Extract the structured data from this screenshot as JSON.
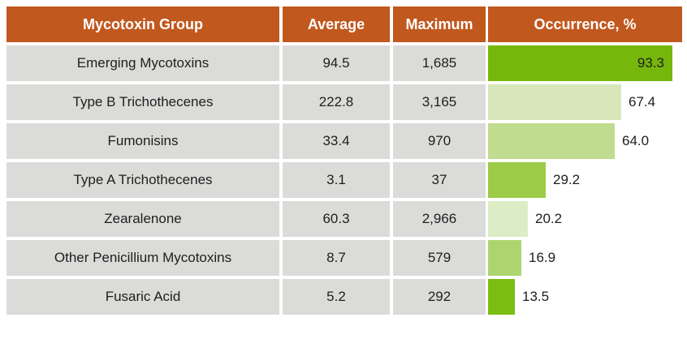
{
  "colors": {
    "header_background": "#C1581E",
    "header_text": "#FFFFFF",
    "row_background": "#DBDBD9",
    "row_text": "#1E1E1E",
    "occurrence_cell_background": "#FFFFFF"
  },
  "chart_data": {
    "type": "table",
    "note": "data table with embedded horizontal bar chart in the Occurrence column",
    "columns": [
      "Mycotoxin Group",
      "Average",
      "Maximum",
      "Occurrence, %"
    ],
    "occurrence_axis": {
      "min": 0,
      "max": 100
    },
    "rows": [
      {
        "group": "Emerging Mycotoxins",
        "average": "94.5",
        "maximum": "1,685",
        "occurrence": 93.3,
        "occurrence_label": "93.3",
        "bar_color": "#76B70B"
      },
      {
        "group": "Type B Trichothecenes",
        "average": "222.8",
        "maximum": "3,165",
        "occurrence": 67.4,
        "occurrence_label": "67.4",
        "bar_color": "#D7E7BA"
      },
      {
        "group": "Fumonisins",
        "average": "33.4",
        "maximum": "970",
        "occurrence": 64.0,
        "occurrence_label": "64.0",
        "bar_color": "#BFDC8F"
      },
      {
        "group": "Type A Trichothecenes",
        "average": "3.1",
        "maximum": "37",
        "occurrence": 29.2,
        "occurrence_label": "29.2",
        "bar_color": "#9BCB47"
      },
      {
        "group": "Zearalenone",
        "average": "60.3",
        "maximum": "2,966",
        "occurrence": 20.2,
        "occurrence_label": "20.2",
        "bar_color": "#DCEDC6"
      },
      {
        "group": "Other Penicillium Mycotoxins",
        "average": "8.7",
        "maximum": "579",
        "occurrence": 16.9,
        "occurrence_label": "16.9",
        "bar_color": "#ACD570"
      },
      {
        "group": "Fusaric Acid",
        "average": "5.2",
        "maximum": "292",
        "occurrence": 13.5,
        "occurrence_label": "13.5",
        "bar_color": "#7CBD12"
      }
    ]
  }
}
